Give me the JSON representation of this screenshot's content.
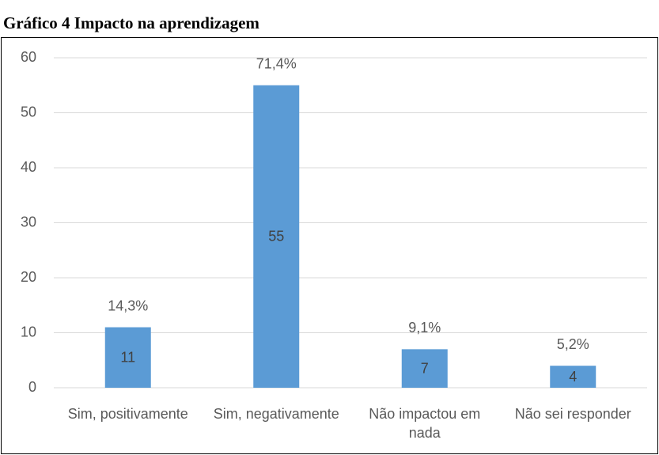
{
  "chart_data": {
    "type": "bar",
    "title": "Gráfico 4 Impacto na aprendizagem",
    "categories": [
      "Sim, positivamente",
      "Sim, negativamente",
      "Não impactou em nada",
      "Não sei responder"
    ],
    "values": [
      11,
      55,
      7,
      4
    ],
    "annotations": [
      "14,3%",
      "71,4%",
      "9,1%",
      "5,2%"
    ],
    "color": "#5b9bd5",
    "ylim": [
      0,
      60
    ],
    "yticks": [
      0,
      10,
      20,
      30,
      40,
      50,
      60
    ],
    "grid": true
  }
}
